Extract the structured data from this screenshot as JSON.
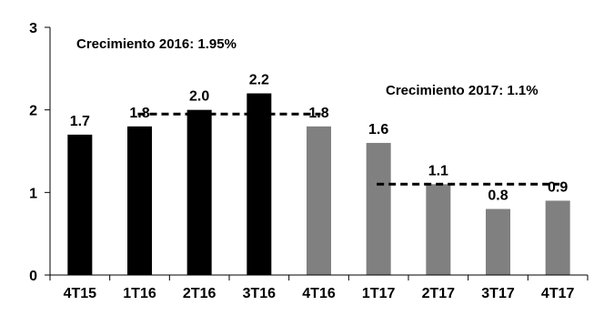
{
  "chart_data": {
    "type": "bar",
    "title": "",
    "xlabel": "",
    "ylabel": "",
    "categories": [
      "4T15",
      "1T16",
      "2T16",
      "3T16",
      "4T16",
      "1T17",
      "2T17",
      "3T17",
      "4T17"
    ],
    "values": [
      1.7,
      1.8,
      2.0,
      2.2,
      1.8,
      1.6,
      1.1,
      0.8,
      0.9
    ],
    "data_labels": [
      "1.7",
      "1.8",
      "2.0",
      "2.2",
      "1.8",
      "1.6",
      "1.1",
      "0.8",
      "0.9"
    ],
    "bar_colors": [
      "#000000",
      "#000000",
      "#000000",
      "#000000",
      "#808080",
      "#808080",
      "#808080",
      "#808080",
      "#808080"
    ],
    "ylim": [
      0,
      3
    ],
    "yticks": [
      0,
      1,
      2,
      3
    ],
    "ytick_labels": [
      "0",
      "1",
      "2",
      "3"
    ],
    "grid": false,
    "reference_lines": [
      {
        "name": "Crecimiento 2016",
        "value": 1.95,
        "from_category": "1T16",
        "to_category": "4T16",
        "style": "dashed"
      },
      {
        "name": "Crecimiento 2017",
        "value": 1.1,
        "from_category": "1T17",
        "to_category": "4T17",
        "style": "dashed"
      }
    ],
    "annotations": [
      "Crecimiento 2016: 1.95%",
      "Crecimiento 2017: 1.1%"
    ]
  }
}
